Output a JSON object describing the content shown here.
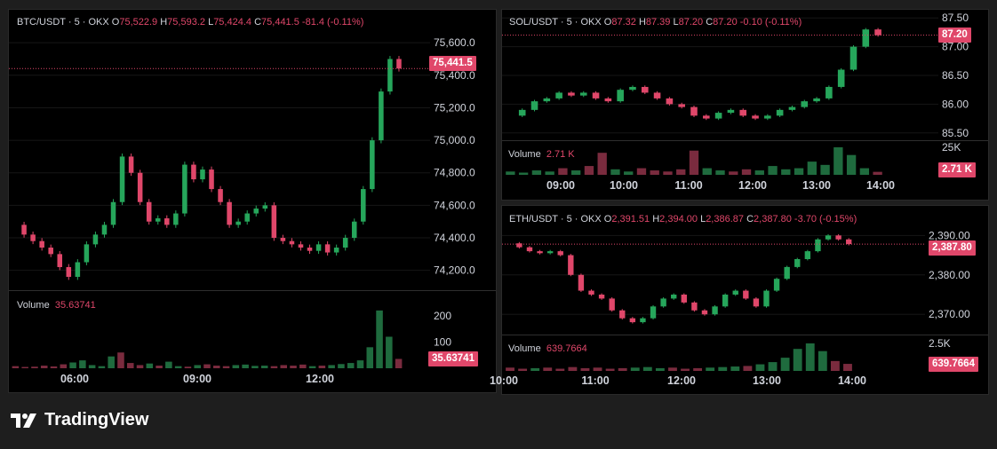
{
  "brand": {
    "name": "TradingView"
  },
  "colors": {
    "up": "#26a65b",
    "down": "#e0476a",
    "axis": "#d1d4dc"
  },
  "charts": [
    {
      "id": "btc",
      "legend": {
        "symbol": "BTC/USDT · 5 · OKX",
        "o_label": "O",
        "o": "75,522.9",
        "h_label": "H",
        "h": "75,593.2",
        "l_label": "L",
        "l": "75,424.4",
        "c_label": "C",
        "c": "75,441.5",
        "chg": "-81.4 (-0.11%)"
      },
      "price_tag": "75,441.5",
      "y_ticks": [
        "75,600.0",
        "75,400.0",
        "75,200.0",
        "75,000.0",
        "74,800.0",
        "74,600.0",
        "74,400.0",
        "74,200.0"
      ],
      "volume": {
        "label": "Volume",
        "value": "35.63741",
        "ticks": [
          "200",
          "100"
        ],
        "tag": "35.63741"
      },
      "x_ticks": [
        "06:00",
        "09:00",
        "12:00"
      ]
    },
    {
      "id": "sol",
      "legend": {
        "symbol": "SOL/USDT · 5 · OKX",
        "o_label": "O",
        "o": "87.32",
        "h_label": "H",
        "h": "87.39",
        "l_label": "L",
        "l": "87.20",
        "c_label": "C",
        "c": "87.20",
        "chg": "-0.10 (-0.11%)"
      },
      "price_tag": "87.20",
      "y_ticks": [
        "87.50",
        "87.00",
        "86.50",
        "86.00",
        "85.50"
      ],
      "volume": {
        "label": "Volume",
        "value": "2.71 K",
        "ticks": [
          "25K"
        ],
        "tag": "2.71 K"
      },
      "x_ticks": [
        "09:00",
        "10:00",
        "11:00",
        "12:00",
        "13:00",
        "14:00"
      ]
    },
    {
      "id": "eth",
      "legend": {
        "symbol": "ETH/USDT · 5 · OKX",
        "o_label": "O",
        "o": "2,391.51",
        "h_label": "H",
        "h": "2,394.00",
        "l_label": "L",
        "l": "2,386.87",
        "c_label": "C",
        "c": "2,387.80",
        "chg": "-3.70 (-0.15%)"
      },
      "price_tag": "2,387.80",
      "y_ticks": [
        "2,390.00",
        "2,380.00",
        "2,370.00"
      ],
      "volume": {
        "label": "Volume",
        "value": "639.7664",
        "ticks": [
          "2.5K"
        ],
        "tag": "639.7664"
      },
      "x_ticks": [
        "10:00",
        "11:00",
        "12:00",
        "13:00",
        "14:00"
      ]
    }
  ],
  "chart_data": [
    {
      "type": "candlestick",
      "symbol": "BTC/USDT",
      "interval": "5",
      "exchange": "OKX",
      "ylim": [
        74100,
        75650
      ],
      "x_ticks": [
        "06:00",
        "09:00",
        "12:00"
      ],
      "last_close": 75441.5,
      "path": [
        74480,
        74420,
        74380,
        74340,
        74300,
        74220,
        74160,
        74250,
        74360,
        74420,
        74480,
        74620,
        74900,
        74800,
        74620,
        74500,
        74520,
        74480,
        74550,
        74850,
        74760,
        74820,
        74700,
        74620,
        74480,
        74500,
        74550,
        74580,
        74600,
        74400,
        74380,
        74360,
        74340,
        74320,
        74360,
        74310,
        74340,
        74400,
        74500,
        74700,
        75000,
        75300,
        75500,
        75441.5
      ],
      "volume_ylim": [
        0,
        250
      ],
      "volume_path": [
        8,
        5,
        6,
        10,
        7,
        15,
        22,
        30,
        12,
        8,
        45,
        60,
        20,
        12,
        18,
        10,
        25,
        8,
        6,
        12,
        15,
        10,
        8,
        12,
        14,
        9,
        10,
        8,
        12,
        10,
        14,
        8,
        10,
        12,
        16,
        20,
        30,
        80,
        220,
        120,
        35.6
      ]
    },
    {
      "type": "candlestick",
      "symbol": "SOL/USDT",
      "interval": "5",
      "exchange": "OKX",
      "ylim": [
        85.45,
        87.55
      ],
      "x_ticks": [
        "09:00",
        "10:00",
        "11:00",
        "12:00",
        "13:00",
        "14:00"
      ],
      "last_close": 87.2,
      "path": [
        85.8,
        85.9,
        86.05,
        86.1,
        86.2,
        86.15,
        86.2,
        86.1,
        86.05,
        86.25,
        86.3,
        86.2,
        86.1,
        86.0,
        85.95,
        85.8,
        85.75,
        85.85,
        85.9,
        85.8,
        85.75,
        85.8,
        85.9,
        85.95,
        86.05,
        86.1,
        86.3,
        86.6,
        87.0,
        87.3,
        87.2
      ],
      "volume_ylim": [
        0,
        25000
      ],
      "volume_path": [
        3000,
        2000,
        4000,
        3000,
        6000,
        4000,
        8000,
        20000,
        5000,
        3000,
        6000,
        4000,
        3000,
        5000,
        22000,
        6000,
        4000,
        3000,
        5000,
        4000,
        8000,
        5000,
        6000,
        12000,
        9000,
        25000,
        18000,
        6000,
        2710
      ]
    },
    {
      "type": "candlestick",
      "symbol": "ETH/USDT",
      "interval": "5",
      "exchange": "OKX",
      "ylim": [
        2366,
        2393
      ],
      "x_ticks": [
        "10:00",
        "11:00",
        "12:00",
        "13:00",
        "14:00"
      ],
      "last_close": 2387.8,
      "path": [
        2388,
        2387,
        2386,
        2385.5,
        2386,
        2385,
        2380,
        2376,
        2375,
        2374,
        2371,
        2369,
        2368,
        2369,
        2372,
        2374,
        2375,
        2373,
        2371,
        2370,
        2372,
        2375,
        2376,
        2374,
        2372,
        2376,
        2379,
        2382,
        2384,
        2386,
        2389,
        2390,
        2389,
        2387.8
      ],
      "volume_ylim": [
        0,
        2500
      ],
      "volume_path": [
        300,
        200,
        250,
        300,
        200,
        350,
        250,
        300,
        200,
        250,
        300,
        350,
        250,
        300,
        200,
        250,
        300,
        350,
        400,
        450,
        600,
        800,
        1200,
        2000,
        2500,
        1800,
        900,
        639.8
      ]
    }
  ]
}
